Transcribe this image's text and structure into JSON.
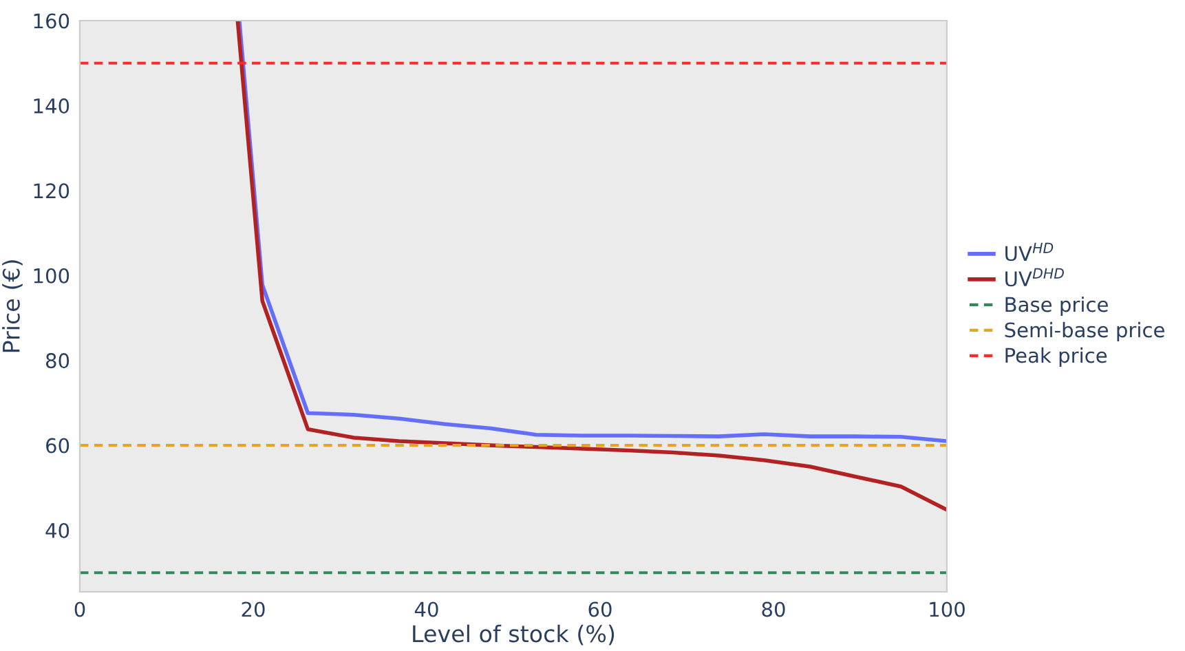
{
  "chart_data": {
    "type": "line",
    "xlabel": "Level of stock (%)",
    "ylabel": "Price (€)",
    "xlim": [
      0,
      100
    ],
    "ylim": [
      25.5,
      160
    ],
    "xticks": [
      0,
      20,
      40,
      60,
      80,
      100
    ],
    "yticks": [
      40,
      60,
      80,
      100,
      120,
      140,
      160
    ],
    "grid": false,
    "legend": "right",
    "line_style": "solid",
    "marker": "none",
    "series": [
      {
        "name": "UV$^{HD}$",
        "color": "#636efa",
        "x": [
          18.4,
          21.05,
          26.3,
          31.6,
          36.8,
          42.1,
          47.4,
          52.6,
          57.9,
          63.2,
          68.4,
          73.7,
          78.9,
          84.2,
          89.5,
          94.7,
          100
        ],
        "values": [
          160,
          97.8,
          67.6,
          67.2,
          66.3,
          65,
          64,
          62.5,
          62.3,
          62.3,
          62.2,
          62.1,
          62.6,
          62.1,
          62.1,
          62,
          61
        ]
      },
      {
        "name": "UV$^{DHD}$",
        "color": "#b22222",
        "x": [
          18.2,
          21.05,
          26.3,
          31.6,
          36.8,
          42.1,
          47.4,
          52.6,
          57.9,
          63.2,
          68.4,
          73.7,
          78.9,
          84.2,
          89.5,
          94.7,
          100
        ],
        "values": [
          160,
          94,
          63.8,
          61.8,
          61,
          60.5,
          60,
          59.6,
          59.2,
          58.8,
          58.3,
          57.6,
          56.5,
          55,
          52.6,
          50.3,
          44.8
        ]
      }
    ],
    "ref_lines": [
      {
        "axis": "y",
        "value": 30,
        "label": "Base price",
        "color": "#2e8b57",
        "line_style": "dashed"
      },
      {
        "axis": "y",
        "value": 60,
        "label": "Semi-base price",
        "color": "#e6a520",
        "line_style": "dashed"
      },
      {
        "axis": "y",
        "value": 150,
        "label": "Peak price",
        "color": "#ff2a2a",
        "line_style": "dashed"
      }
    ]
  }
}
